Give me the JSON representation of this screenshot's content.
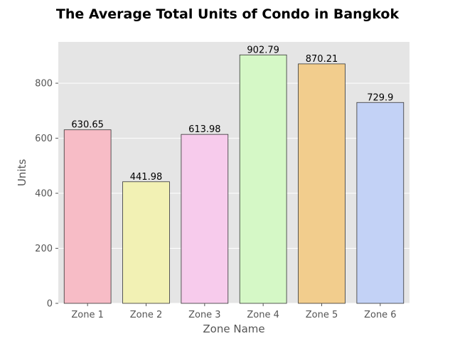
{
  "chart_data": {
    "type": "bar",
    "title": "The Average Total Units of Condo in Bangkok",
    "xlabel": "Zone Name",
    "ylabel": "Units",
    "categories": [
      "Zone 1",
      "Zone 2",
      "Zone 3",
      "Zone 4",
      "Zone 5",
      "Zone 6"
    ],
    "values": [
      630.65,
      441.98,
      613.98,
      902.79,
      870.21,
      729.9
    ],
    "data_labels": [
      "630.65",
      "441.98",
      "613.98",
      "902.79",
      "870.21",
      "729.9"
    ],
    "colors": [
      "#f7bcc6",
      "#f2f1b4",
      "#f7cbec",
      "#d5f8c6",
      "#f2cd8d",
      "#c3d2f6"
    ],
    "ylim": [
      0,
      950
    ],
    "yticks": [
      0,
      200,
      400,
      600,
      800
    ],
    "grid": true,
    "background": "#e5e5e5",
    "gridcolor": "#ffffff",
    "edgecolor": "#333333"
  }
}
